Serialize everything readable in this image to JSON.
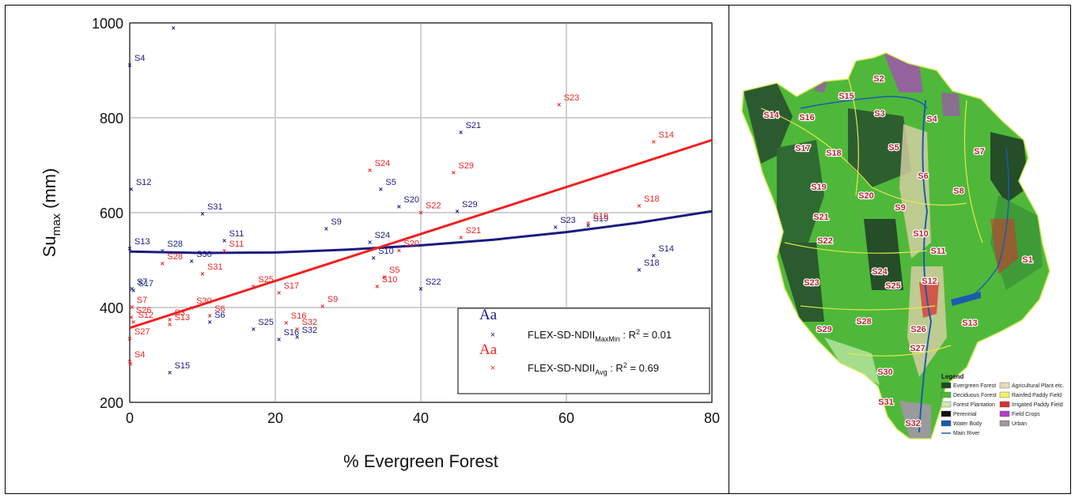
{
  "chart_data": {
    "type": "scatter",
    "xlabel": "% Evergreen Forest",
    "ylabel_main": "Su",
    "ylabel_sub": "max",
    "ylabel_unit": " (mm)",
    "xlim": [
      0,
      80
    ],
    "ylim": [
      200,
      1000
    ],
    "xticks": [
      0,
      20,
      40,
      60,
      80
    ],
    "yticks": [
      200,
      400,
      600,
      800,
      1000
    ],
    "grid": true,
    "legend_position": "bottom-right",
    "series": [
      {
        "key": "maxmin",
        "name_main": "FLEX-SD-NDII",
        "name_sub": "MaxMin",
        "r2_prefix": " : R",
        "r2_sup": "2",
        "r2_value": " = 0.01",
        "sample": "Aa",
        "color": "#1a1a80",
        "trend": [
          [
            0,
            518
          ],
          [
            10,
            515
          ],
          [
            20,
            516
          ],
          [
            30,
            522
          ],
          [
            40,
            531
          ],
          [
            50,
            543
          ],
          [
            60,
            559
          ],
          [
            70,
            579
          ],
          [
            80,
            603
          ]
        ],
        "points": [
          {
            "label": "S4",
            "x": 0,
            "y": 912
          },
          {
            "label": "",
            "x": 6,
            "y": 990
          },
          {
            "label": "S12",
            "x": 0.2,
            "y": 650
          },
          {
            "label": "S13",
            "x": 0,
            "y": 525
          },
          {
            "label": "S31",
            "x": 10,
            "y": 598
          },
          {
            "label": "S28",
            "x": 4.5,
            "y": 520
          },
          {
            "label": "S30",
            "x": 8.5,
            "y": 498
          },
          {
            "label": "S11",
            "x": 13,
            "y": 542
          },
          {
            "label": "S9",
            "x": 27,
            "y": 567
          },
          {
            "label": "S17",
            "x": 0.5,
            "y": 437
          },
          {
            "label": "S7",
            "x": 0.3,
            "y": 440
          },
          {
            "label": "S6",
            "x": 11,
            "y": 370
          },
          {
            "label": "S25",
            "x": 17,
            "y": 355
          },
          {
            "label": "S16",
            "x": 20.5,
            "y": 333
          },
          {
            "label": "S32",
            "x": 23,
            "y": 338
          },
          {
            "label": "S15",
            "x": 5.5,
            "y": 263
          },
          {
            "label": "S5",
            "x": 34.5,
            "y": 650
          },
          {
            "label": "S20",
            "x": 37,
            "y": 613
          },
          {
            "label": "S24",
            "x": 33,
            "y": 538
          },
          {
            "label": "S10",
            "x": 33.5,
            "y": 505
          },
          {
            "label": "S22",
            "x": 40,
            "y": 440
          },
          {
            "label": "S21",
            "x": 45.5,
            "y": 770
          },
          {
            "label": "S29",
            "x": 45,
            "y": 603
          },
          {
            "label": "S23",
            "x": 58.5,
            "y": 570
          },
          {
            "label": "S19",
            "x": 63,
            "y": 573
          },
          {
            "label": "S14",
            "x": 72,
            "y": 510
          },
          {
            "label": "S18",
            "x": 70,
            "y": 480
          }
        ]
      },
      {
        "key": "avg",
        "name_main": "FLEX-SD-NDII",
        "name_sub": "Avg",
        "r2_prefix": " : R",
        "r2_sup": "2",
        "r2_value": " = 0.69",
        "sample": "Aa",
        "color": "#ee2222",
        "trend": [
          [
            0,
            357
          ],
          [
            80,
            753
          ]
        ],
        "points": [
          {
            "label": "S23",
            "x": 59,
            "y": 828
          },
          {
            "label": "S14",
            "x": 72,
            "y": 750
          },
          {
            "label": "S24",
            "x": 33,
            "y": 690
          },
          {
            "label": "S29",
            "x": 44.5,
            "y": 685
          },
          {
            "label": "S18",
            "x": 70,
            "y": 615
          },
          {
            "label": "S22",
            "x": 40,
            "y": 601
          },
          {
            "label": "S19",
            "x": 63,
            "y": 578
          },
          {
            "label": "S21",
            "x": 45.5,
            "y": 548
          },
          {
            "label": "S20",
            "x": 37,
            "y": 521
          },
          {
            "label": "S11",
            "x": 13,
            "y": 520
          },
          {
            "label": "S28",
            "x": 4.5,
            "y": 493
          },
          {
            "label": "S31",
            "x": 10,
            "y": 472
          },
          {
            "label": "S5",
            "x": 35,
            "y": 465
          },
          {
            "label": "S10",
            "x": 34,
            "y": 445
          },
          {
            "label": "S25",
            "x": 17,
            "y": 445
          },
          {
            "label": "S17",
            "x": 20.5,
            "y": 432
          },
          {
            "label": "S9",
            "x": 26.5,
            "y": 403
          },
          {
            "label": "S30",
            "x": 8.5,
            "y": 400
          },
          {
            "label": "S6",
            "x": 11,
            "y": 383
          },
          {
            "label": "S7",
            "x": 0.3,
            "y": 402
          },
          {
            "label": "S26",
            "x": 0.2,
            "y": 380
          },
          {
            "label": "S3",
            "x": 5.5,
            "y": 375
          },
          {
            "label": "S13",
            "x": 5.5,
            "y": 365
          },
          {
            "label": "S16",
            "x": 21.5,
            "y": 368
          },
          {
            "label": "S32",
            "x": 23,
            "y": 355
          },
          {
            "label": "S12",
            "x": 0.5,
            "y": 370
          },
          {
            "label": "S27",
            "x": 0,
            "y": 335
          },
          {
            "label": "S4",
            "x": 0,
            "y": 287
          },
          {
            "label": "",
            "x": 0.1,
            "y": 282
          }
        ]
      }
    ]
  },
  "map": {
    "subcatchments": [
      {
        "label": "S1",
        "x": 377,
        "y": 325
      },
      {
        "label": "S2",
        "x": 189,
        "y": 96
      },
      {
        "label": "S3",
        "x": 190,
        "y": 140
      },
      {
        "label": "S4",
        "x": 256,
        "y": 147
      },
      {
        "label": "S5",
        "x": 208,
        "y": 183
      },
      {
        "label": "S6",
        "x": 245,
        "y": 219
      },
      {
        "label": "S7",
        "x": 316,
        "y": 188
      },
      {
        "label": "S8",
        "x": 290,
        "y": 238
      },
      {
        "label": "S9",
        "x": 216,
        "y": 259
      },
      {
        "label": "S10",
        "x": 242,
        "y": 292
      },
      {
        "label": "S11",
        "x": 264,
        "y": 314
      },
      {
        "label": "S12",
        "x": 253,
        "y": 352
      },
      {
        "label": "S13",
        "x": 304,
        "y": 405
      },
      {
        "label": "S14",
        "x": 53,
        "y": 142
      },
      {
        "label": "S15",
        "x": 148,
        "y": 118
      },
      {
        "label": "S16",
        "x": 98,
        "y": 145
      },
      {
        "label": "S17",
        "x": 93,
        "y": 184
      },
      {
        "label": "S18",
        "x": 132,
        "y": 190
      },
      {
        "label": "S19",
        "x": 113,
        "y": 233
      },
      {
        "label": "S20",
        "x": 173,
        "y": 244
      },
      {
        "label": "S21",
        "x": 116,
        "y": 271
      },
      {
        "label": "S22",
        "x": 121,
        "y": 301
      },
      {
        "label": "S23",
        "x": 104,
        "y": 354
      },
      {
        "label": "S24",
        "x": 190,
        "y": 340
      },
      {
        "label": "S25",
        "x": 207,
        "y": 358
      },
      {
        "label": "S26",
        "x": 239,
        "y": 413
      },
      {
        "label": "S27",
        "x": 238,
        "y": 437
      },
      {
        "label": "S28",
        "x": 170,
        "y": 403
      },
      {
        "label": "S29",
        "x": 120,
        "y": 413
      },
      {
        "label": "S30",
        "x": 197,
        "y": 467
      },
      {
        "label": "S31",
        "x": 198,
        "y": 505
      },
      {
        "label": "S32",
        "x": 232,
        "y": 532
      }
    ],
    "legend": {
      "title": "Legend",
      "items": [
        {
          "label": "Evergreen Forest",
          "color": "#1f4a25"
        },
        {
          "label": "Agricultural Plant etc.",
          "color": "#e8dcb8"
        },
        {
          "label": "Deciduous Forest",
          "color": "#4fb83a"
        },
        {
          "label": "Rainfed Paddy Field",
          "color": "#f2f26a"
        },
        {
          "label": "Forest Plantation",
          "color": "#c8ecb0"
        },
        {
          "label": "Irrigated Paddy Field",
          "color": "#d93030"
        },
        {
          "label": "Perennial",
          "color": "#111111"
        },
        {
          "label": "Field Crops",
          "color": "#b040c8"
        },
        {
          "label": "Water Body",
          "color": "#1c5ab0"
        },
        {
          "label": "Urban",
          "color": "#9a9a9a"
        },
        {
          "label": "Main River",
          "color": "#1c5ab0"
        }
      ]
    }
  }
}
